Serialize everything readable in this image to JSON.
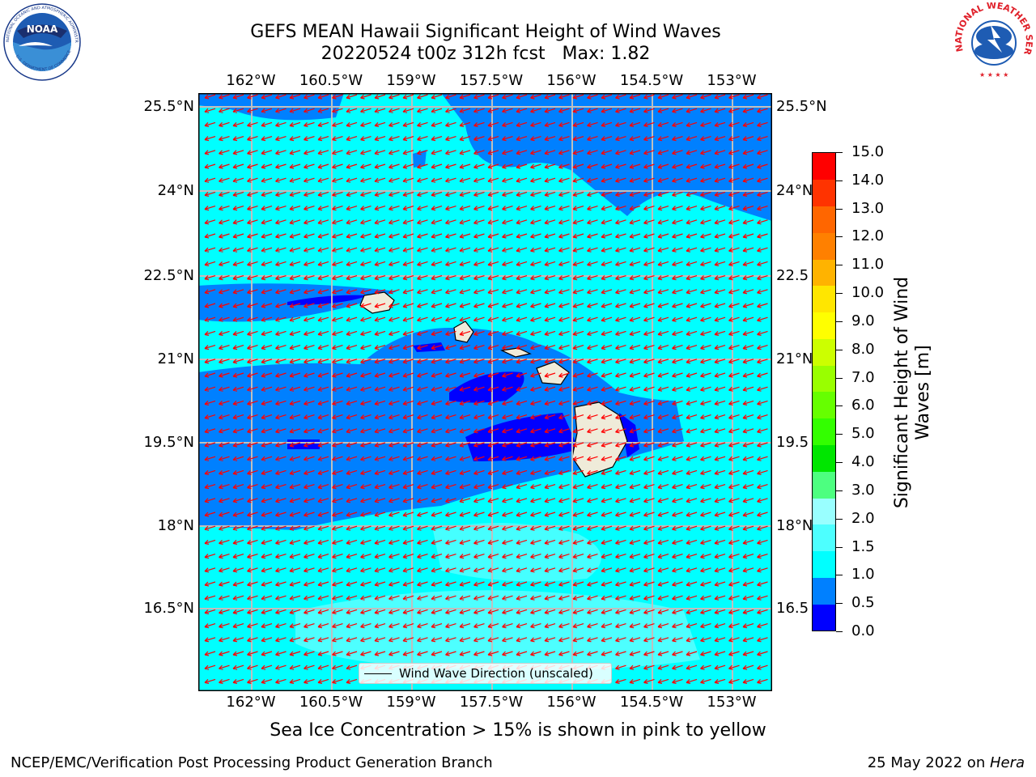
{
  "title": {
    "line1": "GEFS MEAN Hawaii Significant Height of Wind Waves",
    "line2": "20220524 t00z 312h fcst   Max: 1.82"
  },
  "logos": {
    "left": {
      "name": "noaa-logo",
      "text": "NOAA",
      "ring_text": "NATIONAL OCEANIC AND ATMOSPHERIC ADMINISTRATION · U.S. DEPARTMENT OF COMMERCE"
    },
    "right": {
      "name": "national-weather-service-logo",
      "ring_text": "NATIONAL WEATHER SERVICE"
    }
  },
  "map": {
    "lon_labels": [
      "162°W",
      "160.5°W",
      "159°W",
      "157.5°W",
      "156°W",
      "154.5°W",
      "153°W"
    ],
    "lat_labels": [
      "25.5°N",
      "24°N",
      "22.5°N",
      "21°N",
      "19.5°N",
      "18°N",
      "16.5°N"
    ],
    "lat_labels_right": [
      "25.5°N",
      "24°N",
      "22.5",
      "21°N",
      "19.5",
      "18°N",
      "16.5"
    ],
    "colors": {
      "ocean_ge_1_0": "#00ffff",
      "ocean_0_5_1_0": "#0080ff",
      "ocean_lt_0_5": "#0000ff",
      "ocean_1_5_2_0": "#4dffff",
      "land": "#efebd9",
      "arrow": "#ff0000",
      "grid": "#bfbfbf"
    },
    "arrow_direction": "toward southwest",
    "legend": "Wind Wave Direction (unscaled)"
  },
  "colorbar": {
    "title_line1": "Significant Height of Wind",
    "title_line2": "Waves [m]",
    "labels": [
      "15.0",
      "14.0",
      "13.0",
      "12.0",
      "11.0",
      "10.0",
      "9.0",
      "8.0",
      "7.0",
      "6.0",
      "5.0",
      "4.0",
      "3.0",
      "2.0",
      "1.5",
      "1.0",
      "0.5",
      "0.0"
    ],
    "colors_bottom_to_top": [
      "#0000ff",
      "#0080ff",
      "#00ffff",
      "#4dffff",
      "#99ffff",
      "#4dff80",
      "#00e600",
      "#33ff00",
      "#66ff00",
      "#99ff00",
      "#ccff00",
      "#ffff00",
      "#ffe600",
      "#ffb300",
      "#ff8000",
      "#ff6600",
      "#ff3300",
      "#ff0000"
    ]
  },
  "subtitle": "Sea Ice Concentration > 15% is shown in pink to yellow",
  "footer": {
    "left": "NCEP/EMC/Verification Post Processing Product Generation Branch",
    "right_prefix": "25 May 2022 on ",
    "right_italic": "Hera"
  }
}
